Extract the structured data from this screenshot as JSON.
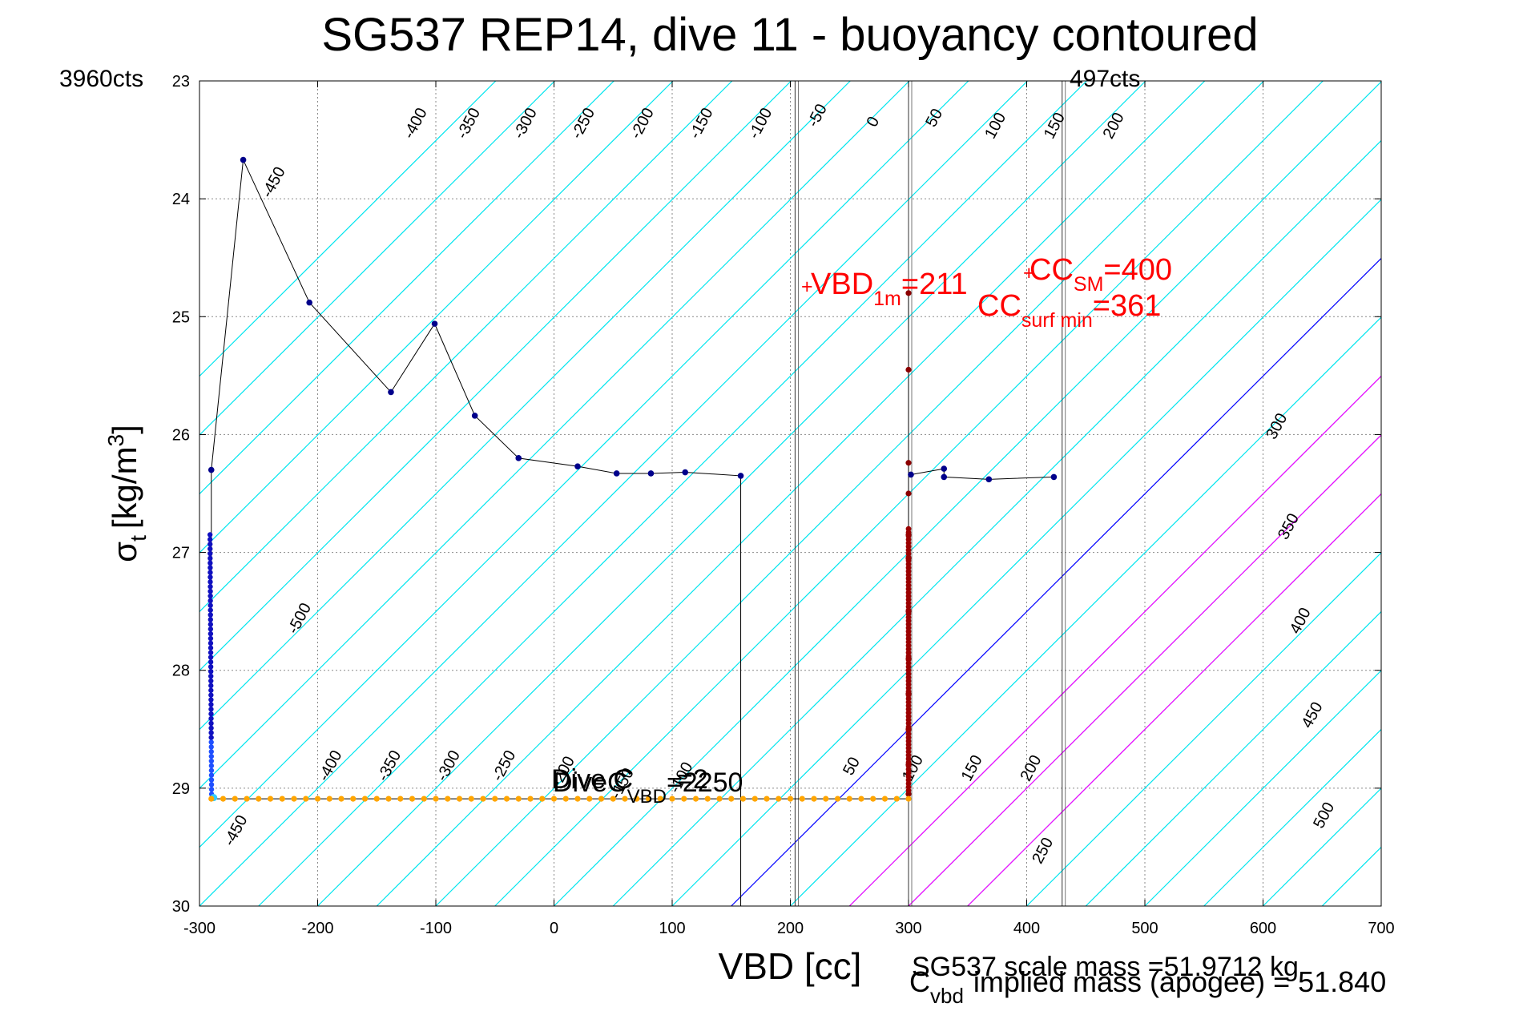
{
  "chart_data": {
    "type": "line",
    "title": "SG537 REP14, dive 11 - buoyancy contoured",
    "xlabel": "VBD [cc]",
    "ylabel": "σ",
    "ylabel_sub": "t",
    "ylabel_units": "[kg/m",
    "ylabel_units_sup": "3",
    "ylabel_units_end": "]",
    "xlim": [
      -300,
      700
    ],
    "ylim": [
      30,
      23
    ],
    "x_ticks": [
      -300,
      -200,
      -100,
      0,
      100,
      200,
      300,
      400,
      500,
      600,
      700
    ],
    "y_ticks": [
      23,
      24,
      25,
      26,
      27,
      28,
      29,
      30
    ],
    "grid": true,
    "corner_left": "3960cts",
    "corner_right": "497cts",
    "contours": {
      "cyan_levels": [
        -500,
        -450,
        -400,
        -350,
        -300,
        -250,
        -200,
        -150,
        -100,
        -50,
        50,
        100,
        150,
        200,
        250,
        300,
        350,
        400,
        450,
        500
      ],
      "zero_level": 0,
      "magenta_levels": [
        100,
        150,
        200
      ],
      "line_labels": [
        {
          "v": -450,
          "x": -240,
          "y": 24.0
        },
        {
          "v": -400,
          "x": -120,
          "y": 23.5
        },
        {
          "v": -350,
          "x": -75,
          "y": 23.5
        },
        {
          "v": -300,
          "x": -27,
          "y": 23.5
        },
        {
          "v": -250,
          "x": 22,
          "y": 23.5
        },
        {
          "v": -200,
          "x": 72,
          "y": 23.5
        },
        {
          "v": -150,
          "x": 122,
          "y": 23.5
        },
        {
          "v": -100,
          "x": 172,
          "y": 23.5
        },
        {
          "v": -50,
          "x": 222,
          "y": 23.4
        },
        {
          "v": 0,
          "x": 272,
          "y": 23.4
        },
        {
          "v": 50,
          "x": 322,
          "y": 23.4
        },
        {
          "v": 100,
          "x": 372,
          "y": 23.5
        },
        {
          "v": 150,
          "x": 422,
          "y": 23.5
        },
        {
          "v": 200,
          "x": 472,
          "y": 23.5
        },
        {
          "v": 300,
          "x": 610,
          "y": 26.05
        },
        {
          "v": 350,
          "x": 620,
          "y": 26.9
        },
        {
          "v": 400,
          "x": 630,
          "y": 27.7
        },
        {
          "v": 450,
          "x": 640,
          "y": 28.5
        },
        {
          "v": 500,
          "x": 650,
          "y": 29.35
        },
        {
          "v": -500,
          "x": -218,
          "y": 27.7
        },
        {
          "v": -450,
          "x": -272,
          "y": 29.5
        },
        {
          "v": -400,
          "x": -192,
          "y": 28.95
        },
        {
          "v": -350,
          "x": -142,
          "y": 28.95
        },
        {
          "v": -300,
          "x": -92,
          "y": 28.95
        },
        {
          "v": -250,
          "x": -45,
          "y": 28.95
        },
        {
          "v": -200,
          "x": 5,
          "y": 29.0
        },
        {
          "v": -150,
          "x": 55,
          "y": 29.1
        },
        {
          "v": -100,
          "x": 105,
          "y": 29.05
        },
        {
          "v": 50,
          "x": 252,
          "y": 28.9
        },
        {
          "v": 100,
          "x": 302,
          "y": 28.95
        },
        {
          "v": 150,
          "x": 352,
          "y": 28.95
        },
        {
          "v": 200,
          "x": 402,
          "y": 28.95
        },
        {
          "v": 250,
          "x": 412,
          "y": 29.65
        }
      ]
    },
    "vertical_lines": [
      204,
      300,
      430
    ],
    "series": [
      {
        "color": "#00008b",
        "x": [
          -290,
          -263,
          -207,
          -138,
          -101,
          -67,
          -30,
          20,
          53,
          82,
          111,
          158
        ],
        "y": [
          26.3,
          23.67,
          24.88,
          25.64,
          25.06,
          25.84,
          26.2,
          26.27,
          26.33,
          26.33,
          26.32,
          26.35
        ]
      },
      {
        "color": "#00008b",
        "x": [
          302,
          330,
          330,
          368,
          423
        ],
        "y": [
          26.34,
          26.29,
          26.36,
          26.38,
          26.36
        ]
      },
      {
        "color": "#8b0000",
        "x": [
          300,
          300,
          300,
          300,
          300,
          300,
          300,
          300,
          300,
          300,
          300,
          300
        ],
        "y": [
          24.8,
          25.45,
          26.24,
          26.5,
          26.85,
          27.05,
          27.5,
          27.9,
          28.2,
          28.5,
          28.8,
          29.05
        ]
      },
      {
        "color": "#ffa500",
        "x": [
          -290,
          -280,
          -270,
          -260,
          -250,
          -240,
          -230,
          -220,
          -210,
          -200,
          -190,
          -180,
          -170,
          -160,
          -150,
          -140,
          -130,
          -120,
          -110,
          -100,
          -90,
          -80,
          -70,
          -60,
          -50,
          -40,
          -30,
          -20,
          -10,
          0,
          10,
          20,
          30,
          40,
          50,
          60,
          70,
          80,
          90,
          100,
          110,
          120,
          130,
          140,
          150,
          160,
          170,
          180,
          190,
          200,
          210,
          220,
          230,
          240,
          250,
          260,
          270,
          280,
          290,
          300
        ],
        "y": 29.09
      }
    ],
    "annotations": [
      {
        "label": "VBD",
        "sub": "1m",
        "tail": "=211"
      },
      {
        "label": "CC",
        "sub": "SM",
        "tail": "=400"
      },
      {
        "label": "CC",
        "sub": "surf min",
        "tail": "=361"
      },
      {
        "label": "DiveC",
        "sub": "VBD",
        "tail": "=2250"
      },
      {
        "label": "Dive C",
        "tail": "=2"
      }
    ],
    "footer_line1": "SG537 scale mass =51.9712 kg",
    "footer_line2_main": "C",
    "footer_line2_sub": "vbd",
    "footer_line2_tail": "implied mass (apogee) = 51.840"
  }
}
